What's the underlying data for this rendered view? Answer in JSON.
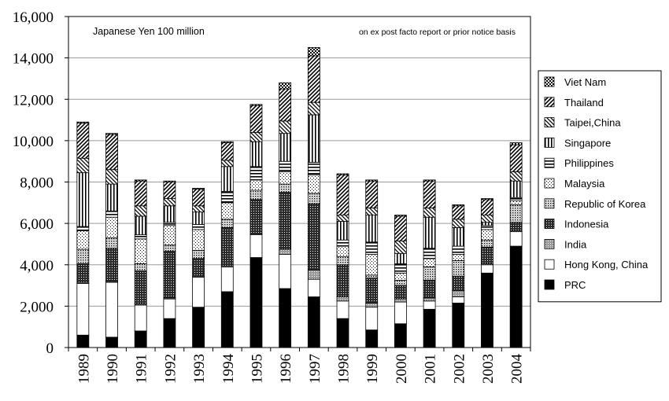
{
  "chart_data": {
    "type": "bar",
    "stacked": true,
    "unit_note": "Japanese Yen 100 million",
    "basis_note": "on ex post facto report or prior notice basis",
    "categories": [
      "1989",
      "1990",
      "1991",
      "1992",
      "1993",
      "1994",
      "1995",
      "1996",
      "1997",
      "1998",
      "1999",
      "2000",
      "2001",
      "2002",
      "2003",
      "2004"
    ],
    "ylim": [
      0,
      16000
    ],
    "yticks": [
      0,
      2000,
      4000,
      6000,
      8000,
      10000,
      12000,
      14000,
      16000
    ],
    "ytick_labels": [
      "0",
      "2,000",
      "4,000",
      "6,000",
      "8,000",
      "10,000",
      "12,000",
      "14,000",
      "16,000"
    ],
    "grid": true,
    "legend_position": "right",
    "series": [
      {
        "name": "PRC",
        "pattern": "solid-black",
        "values": [
          600,
          500,
          800,
          1400,
          1950,
          2700,
          4350,
          2850,
          2450,
          1400,
          850,
          1150,
          1850,
          2150,
          3600,
          4900
        ]
      },
      {
        "name": "Hong Kong, China",
        "pattern": "white",
        "values": [
          2500,
          2650,
          1250,
          950,
          1450,
          1200,
          1100,
          1650,
          850,
          850,
          1100,
          1050,
          400,
          300,
          400,
          700
        ]
      },
      {
        "name": "India",
        "pattern": "gray-dots",
        "values": [
          50,
          50,
          50,
          50,
          50,
          50,
          50,
          250,
          450,
          200,
          200,
          150,
          150,
          300,
          50,
          50
        ]
      },
      {
        "name": "Indonesia",
        "pattern": "dense-dots",
        "values": [
          900,
          1600,
          1600,
          2250,
          850,
          1850,
          1650,
          2750,
          3200,
          1550,
          1200,
          650,
          850,
          700,
          800,
          400
        ]
      },
      {
        "name": "Republic of Korea",
        "pattern": "dots-medium",
        "values": [
          700,
          500,
          350,
          300,
          400,
          400,
          450,
          400,
          500,
          400,
          150,
          250,
          650,
          750,
          350,
          850
        ]
      },
      {
        "name": "Malaysia",
        "pattern": "dots-light",
        "values": [
          900,
          1000,
          1200,
          950,
          1000,
          800,
          500,
          600,
          900,
          500,
          1000,
          350,
          400,
          300,
          500,
          200
        ]
      },
      {
        "name": "Philippines",
        "pattern": "h-lines",
        "values": [
          200,
          300,
          200,
          150,
          250,
          550,
          650,
          500,
          600,
          300,
          600,
          450,
          500,
          400,
          200,
          150
        ]
      },
      {
        "name": "Singapore",
        "pattern": "v-lines",
        "values": [
          2600,
          1300,
          900,
          800,
          600,
          1200,
          1200,
          1350,
          2300,
          900,
          1300,
          500,
          1500,
          900,
          150,
          800
        ]
      },
      {
        "name": "Taipei,China",
        "pattern": "diag-back",
        "values": [
          700,
          700,
          500,
          350,
          300,
          300,
          450,
          600,
          600,
          300,
          350,
          600,
          450,
          400,
          350,
          450
        ]
      },
      {
        "name": "Thailand",
        "pattern": "diag-fwd",
        "values": [
          1700,
          1700,
          1200,
          800,
          800,
          850,
          1300,
          1550,
          2250,
          1950,
          1300,
          1200,
          1300,
          650,
          750,
          1300
        ]
      },
      {
        "name": "Viet Nam",
        "pattern": "checker",
        "values": [
          50,
          50,
          50,
          50,
          50,
          50,
          50,
          300,
          400,
          50,
          50,
          50,
          50,
          50,
          50,
          100
        ]
      }
    ],
    "legend_order": [
      "Viet Nam",
      "Thailand",
      "Taipei,China",
      "Singapore",
      "Philippines",
      "Malaysia",
      "Republic of Korea",
      "Indonesia",
      "India",
      "Hong Kong, China",
      "PRC"
    ]
  }
}
